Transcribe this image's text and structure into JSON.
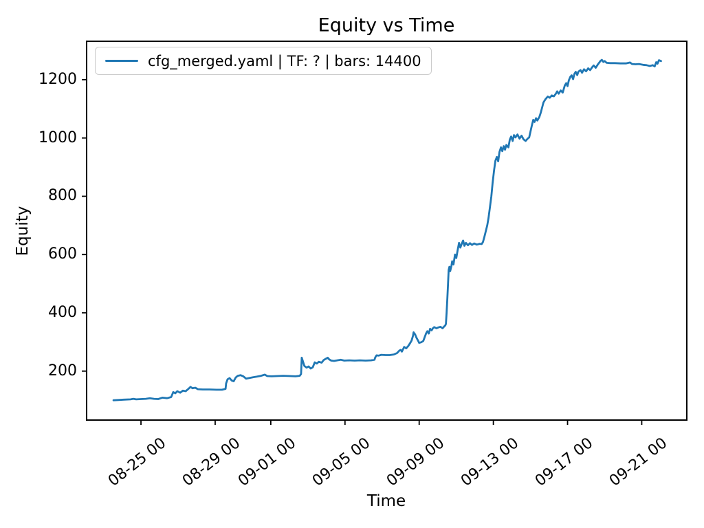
{
  "chart_data": {
    "type": "line",
    "title": "Equity vs Time",
    "xlabel": "Time",
    "ylabel": "Equity",
    "grid": false,
    "background": "#ffffff",
    "axes_color": "#000000",
    "line_color": "#1f77b4",
    "legend": {
      "position": "upper left",
      "entries": [
        {
          "label": "cfg_merged.yaml | TF: ? | bars: 14400",
          "color": "#1f77b4"
        }
      ]
    },
    "x_axis_note": "t in days since 08-23 00:00; tick labels formatted MM-DD HH",
    "xlim_days": [
      -0.93,
      31.43
    ],
    "ylim": [
      32,
      1332
    ],
    "yticks": [
      200,
      400,
      600,
      800,
      1000,
      1200
    ],
    "xticks": [
      {
        "t": 2,
        "label": "08-25 00"
      },
      {
        "t": 6,
        "label": "08-29 00"
      },
      {
        "t": 9,
        "label": "09-01 00"
      },
      {
        "t": 13,
        "label": "09-05 00"
      },
      {
        "t": 17,
        "label": "09-09 00"
      },
      {
        "t": 21,
        "label": "09-13 00"
      },
      {
        "t": 25,
        "label": "09-17 00"
      },
      {
        "t": 29,
        "label": "09-21 00"
      }
    ],
    "series": [
      {
        "name": "cfg_merged.yaml | TF: ? | bars: 14400",
        "points": [
          [
            0.52,
            100
          ],
          [
            0.78,
            101
          ],
          [
            1.07,
            102
          ],
          [
            1.44,
            103
          ],
          [
            1.59,
            105
          ],
          [
            1.74,
            103
          ],
          [
            2.0,
            104
          ],
          [
            2.26,
            105
          ],
          [
            2.48,
            107
          ],
          [
            2.7,
            105
          ],
          [
            2.93,
            104
          ],
          [
            3.15,
            109
          ],
          [
            3.41,
            107
          ],
          [
            3.63,
            111
          ],
          [
            3.74,
            128
          ],
          [
            3.85,
            124
          ],
          [
            3.96,
            131
          ],
          [
            4.11,
            126
          ],
          [
            4.26,
            133
          ],
          [
            4.41,
            131
          ],
          [
            4.56,
            139
          ],
          [
            4.67,
            146
          ],
          [
            4.78,
            141
          ],
          [
            4.93,
            143
          ],
          [
            5.07,
            138
          ],
          [
            5.33,
            137
          ],
          [
            5.7,
            137
          ],
          [
            6.07,
            136
          ],
          [
            6.37,
            136
          ],
          [
            6.56,
            139
          ],
          [
            6.59,
            158
          ],
          [
            6.67,
            172
          ],
          [
            6.78,
            176
          ],
          [
            6.89,
            168
          ],
          [
            7.0,
            165
          ],
          [
            7.11,
            178
          ],
          [
            7.22,
            184
          ],
          [
            7.37,
            186
          ],
          [
            7.52,
            182
          ],
          [
            7.67,
            174
          ],
          [
            7.81,
            176
          ],
          [
            8.04,
            179
          ],
          [
            8.26,
            181
          ],
          [
            8.48,
            184
          ],
          [
            8.67,
            188
          ],
          [
            8.81,
            183
          ],
          [
            9.04,
            182
          ],
          [
            9.33,
            183
          ],
          [
            9.67,
            184
          ],
          [
            10.04,
            183
          ],
          [
            10.33,
            182
          ],
          [
            10.56,
            184
          ],
          [
            10.63,
            190
          ],
          [
            10.67,
            246
          ],
          [
            10.74,
            232
          ],
          [
            10.81,
            218
          ],
          [
            10.93,
            212
          ],
          [
            11.04,
            216
          ],
          [
            11.15,
            209
          ],
          [
            11.26,
            213
          ],
          [
            11.37,
            230
          ],
          [
            11.48,
            226
          ],
          [
            11.59,
            232
          ],
          [
            11.74,
            229
          ],
          [
            11.85,
            238
          ],
          [
            11.96,
            242
          ],
          [
            12.07,
            246
          ],
          [
            12.15,
            240
          ],
          [
            12.26,
            236
          ],
          [
            12.41,
            235
          ],
          [
            12.59,
            237
          ],
          [
            12.78,
            239
          ],
          [
            12.96,
            236
          ],
          [
            13.22,
            237
          ],
          [
            13.52,
            236
          ],
          [
            13.81,
            237
          ],
          [
            14.11,
            236
          ],
          [
            14.41,
            237
          ],
          [
            14.59,
            239
          ],
          [
            14.63,
            247
          ],
          [
            14.7,
            254
          ],
          [
            14.81,
            253
          ],
          [
            14.96,
            256
          ],
          [
            15.19,
            255
          ],
          [
            15.41,
            255
          ],
          [
            15.63,
            257
          ],
          [
            15.81,
            262
          ],
          [
            15.93,
            270
          ],
          [
            16.0,
            273
          ],
          [
            16.07,
            267
          ],
          [
            16.19,
            283
          ],
          [
            16.3,
            278
          ],
          [
            16.41,
            286
          ],
          [
            16.52,
            297
          ],
          [
            16.59,
            305
          ],
          [
            16.67,
            322
          ],
          [
            16.7,
            333
          ],
          [
            16.78,
            326
          ],
          [
            16.85,
            315
          ],
          [
            16.93,
            306
          ],
          [
            17.0,
            297
          ],
          [
            17.11,
            299
          ],
          [
            17.22,
            303
          ],
          [
            17.3,
            317
          ],
          [
            17.37,
            329
          ],
          [
            17.44,
            337
          ],
          [
            17.52,
            329
          ],
          [
            17.59,
            345
          ],
          [
            17.67,
            340
          ],
          [
            17.74,
            347
          ],
          [
            17.81,
            351
          ],
          [
            17.93,
            347
          ],
          [
            18.04,
            350
          ],
          [
            18.15,
            352
          ],
          [
            18.26,
            347
          ],
          [
            18.33,
            352
          ],
          [
            18.41,
            357
          ],
          [
            18.44,
            362
          ],
          [
            18.48,
            400
          ],
          [
            18.52,
            450
          ],
          [
            18.56,
            505
          ],
          [
            18.59,
            547
          ],
          [
            18.63,
            558
          ],
          [
            18.67,
            543
          ],
          [
            18.74,
            562
          ],
          [
            18.78,
            577
          ],
          [
            18.85,
            566
          ],
          [
            18.93,
            600
          ],
          [
            19.0,
            588
          ],
          [
            19.07,
            614
          ],
          [
            19.15,
            640
          ],
          [
            19.22,
            624
          ],
          [
            19.3,
            638
          ],
          [
            19.37,
            648
          ],
          [
            19.44,
            630
          ],
          [
            19.52,
            640
          ],
          [
            19.63,
            632
          ],
          [
            19.74,
            639
          ],
          [
            19.85,
            633
          ],
          [
            19.96,
            638
          ],
          [
            20.11,
            634
          ],
          [
            20.26,
            637
          ],
          [
            20.37,
            636
          ],
          [
            20.44,
            643
          ],
          [
            20.52,
            662
          ],
          [
            20.59,
            680
          ],
          [
            20.67,
            700
          ],
          [
            20.74,
            726
          ],
          [
            20.81,
            760
          ],
          [
            20.89,
            800
          ],
          [
            20.96,
            845
          ],
          [
            21.04,
            890
          ],
          [
            21.11,
            922
          ],
          [
            21.19,
            935
          ],
          [
            21.26,
            920
          ],
          [
            21.33,
            952
          ],
          [
            21.41,
            968
          ],
          [
            21.48,
            955
          ],
          [
            21.56,
            972
          ],
          [
            21.63,
            960
          ],
          [
            21.7,
            976
          ],
          [
            21.81,
            968
          ],
          [
            21.89,
            995
          ],
          [
            21.96,
            1005
          ],
          [
            22.04,
            990
          ],
          [
            22.11,
            1010
          ],
          [
            22.19,
            1002
          ],
          [
            22.3,
            1012
          ],
          [
            22.41,
            998
          ],
          [
            22.52,
            1008
          ],
          [
            22.63,
            995
          ],
          [
            22.74,
            990
          ],
          [
            22.85,
            998
          ],
          [
            22.93,
            1002
          ],
          [
            23.0,
            1022
          ],
          [
            23.07,
            1042
          ],
          [
            23.15,
            1062
          ],
          [
            23.22,
            1055
          ],
          [
            23.3,
            1068
          ],
          [
            23.37,
            1060
          ],
          [
            23.48,
            1072
          ],
          [
            23.56,
            1088
          ],
          [
            23.63,
            1105
          ],
          [
            23.7,
            1122
          ],
          [
            23.81,
            1133
          ],
          [
            23.93,
            1142
          ],
          [
            24.04,
            1138
          ],
          [
            24.15,
            1146
          ],
          [
            24.26,
            1143
          ],
          [
            24.37,
            1152
          ],
          [
            24.44,
            1160
          ],
          [
            24.52,
            1152
          ],
          [
            24.63,
            1163
          ],
          [
            24.74,
            1156
          ],
          [
            24.85,
            1180
          ],
          [
            24.93,
            1188
          ],
          [
            25.0,
            1178
          ],
          [
            25.07,
            1198
          ],
          [
            25.15,
            1210
          ],
          [
            25.22,
            1215
          ],
          [
            25.3,
            1202
          ],
          [
            25.37,
            1220
          ],
          [
            25.44,
            1227
          ],
          [
            25.52,
            1216
          ],
          [
            25.59,
            1228
          ],
          [
            25.7,
            1233
          ],
          [
            25.78,
            1224
          ],
          [
            25.89,
            1236
          ],
          [
            26.0,
            1229
          ],
          [
            26.11,
            1239
          ],
          [
            26.22,
            1233
          ],
          [
            26.33,
            1243
          ],
          [
            26.41,
            1249
          ],
          [
            26.52,
            1241
          ],
          [
            26.63,
            1252
          ],
          [
            26.7,
            1258
          ],
          [
            26.78,
            1265
          ],
          [
            26.85,
            1268
          ],
          [
            26.93,
            1261
          ],
          [
            27.0,
            1264
          ],
          [
            27.11,
            1258
          ],
          [
            27.3,
            1257
          ],
          [
            27.56,
            1257
          ],
          [
            27.85,
            1256
          ],
          [
            28.15,
            1256
          ],
          [
            28.37,
            1259
          ],
          [
            28.48,
            1254
          ],
          [
            28.67,
            1253
          ],
          [
            28.85,
            1254
          ],
          [
            29.07,
            1251
          ],
          [
            29.26,
            1250
          ],
          [
            29.44,
            1247
          ],
          [
            29.59,
            1250
          ],
          [
            29.7,
            1246
          ],
          [
            29.78,
            1260
          ],
          [
            29.85,
            1255
          ],
          [
            29.93,
            1267
          ],
          [
            30.04,
            1264
          ]
        ]
      }
    ]
  }
}
